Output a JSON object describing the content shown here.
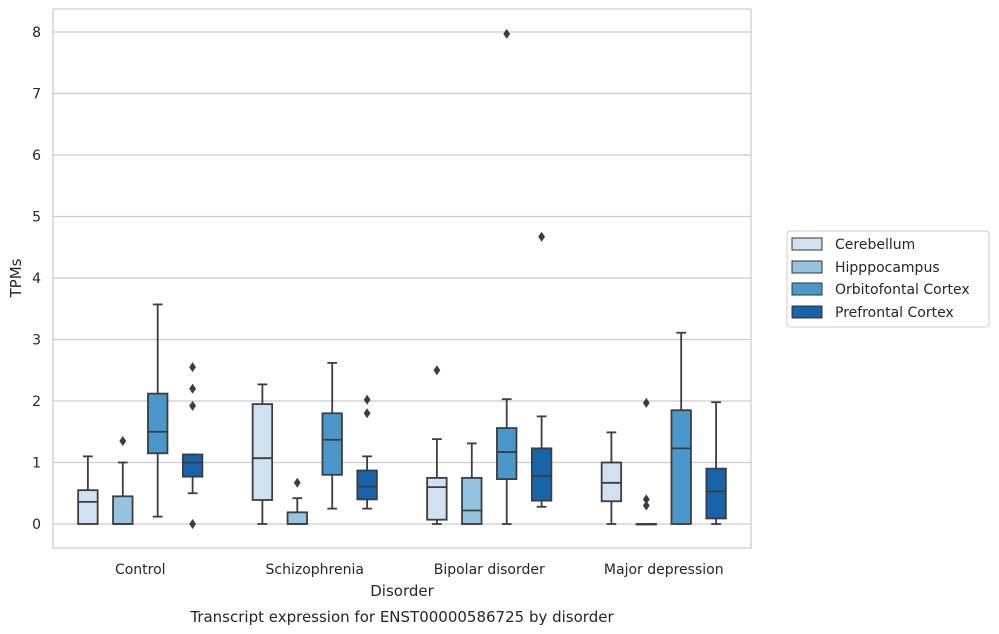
{
  "chart_data": {
    "type": "box",
    "title": "Transcript expression for ENST00000586725 by disorder",
    "xlabel": "Disorder",
    "ylabel": "TPMs",
    "ylim": [
      -0.4,
      8.35
    ],
    "yticks": [
      0,
      1,
      2,
      3,
      4,
      5,
      6,
      7,
      8
    ],
    "categories": [
      "Control",
      "Schizophrenia",
      "Bipolar disorder",
      "Major depression"
    ],
    "grid": "horizontal",
    "legend_position": "right",
    "series": [
      {
        "name": "Cerebellum",
        "color": "#d0e1f2",
        "boxes": [
          {
            "whislo": 0.0,
            "q1": 0.0,
            "med": 0.36,
            "q3": 0.55,
            "whishi": 1.1,
            "fliers": []
          },
          {
            "whislo": 0.0,
            "q1": 0.39,
            "med": 1.07,
            "q3": 1.95,
            "whishi": 2.27,
            "fliers": []
          },
          {
            "whislo": 0.0,
            "q1": 0.07,
            "med": 0.6,
            "q3": 0.75,
            "whishi": 1.38,
            "fliers": [
              2.5
            ]
          },
          {
            "whislo": 0.0,
            "q1": 0.37,
            "med": 0.67,
            "q3": 1.0,
            "whishi": 1.49,
            "fliers": []
          }
        ]
      },
      {
        "name": "Hipppocampus",
        "color": "#94c4df",
        "boxes": [
          {
            "whislo": 0.0,
            "q1": 0.0,
            "med": 0.0,
            "q3": 0.45,
            "whishi": 1.0,
            "fliers": [
              1.35
            ]
          },
          {
            "whislo": 0.0,
            "q1": 0.0,
            "med": 0.0,
            "q3": 0.19,
            "whishi": 0.42,
            "fliers": [
              0.67
            ]
          },
          {
            "whislo": 0.0,
            "q1": 0.0,
            "med": 0.22,
            "q3": 0.75,
            "whishi": 1.31,
            "fliers": []
          },
          {
            "whislo": 0.0,
            "q1": 0.0,
            "med": 0.0,
            "q3": 0.0,
            "whishi": 0.0,
            "fliers": [
              0.3,
              0.4,
              1.97
            ]
          }
        ]
      },
      {
        "name": "Orbitofontal Cortex",
        "color": "#4a98c9",
        "boxes": [
          {
            "whislo": 0.12,
            "q1": 1.15,
            "med": 1.5,
            "q3": 2.12,
            "whishi": 3.57,
            "fliers": []
          },
          {
            "whislo": 0.25,
            "q1": 0.8,
            "med": 1.37,
            "q3": 1.8,
            "whishi": 2.62,
            "fliers": []
          },
          {
            "whislo": 0.0,
            "q1": 0.73,
            "med": 1.17,
            "q3": 1.56,
            "whishi": 2.03,
            "fliers": [
              7.97
            ]
          },
          {
            "whislo": 0.0,
            "q1": 0.0,
            "med": 1.23,
            "q3": 1.85,
            "whishi": 3.11,
            "fliers": []
          }
        ]
      },
      {
        "name": "Prefrontal Cortex",
        "color": "#1764ab",
        "boxes": [
          {
            "whislo": 0.5,
            "q1": 0.77,
            "med": 1.0,
            "q3": 1.13,
            "whishi": 1.13,
            "fliers": [
              0.0,
              1.92,
              2.2,
              2.55
            ]
          },
          {
            "whislo": 0.25,
            "q1": 0.4,
            "med": 0.61,
            "q3": 0.87,
            "whishi": 1.1,
            "fliers": [
              1.8,
              2.02
            ]
          },
          {
            "whislo": 0.28,
            "q1": 0.38,
            "med": 0.78,
            "q3": 1.23,
            "whishi": 1.75,
            "fliers": [
              4.67
            ]
          },
          {
            "whislo": 0.0,
            "q1": 0.09,
            "med": 0.53,
            "q3": 0.9,
            "whishi": 1.98,
            "fliers": []
          }
        ]
      }
    ]
  }
}
